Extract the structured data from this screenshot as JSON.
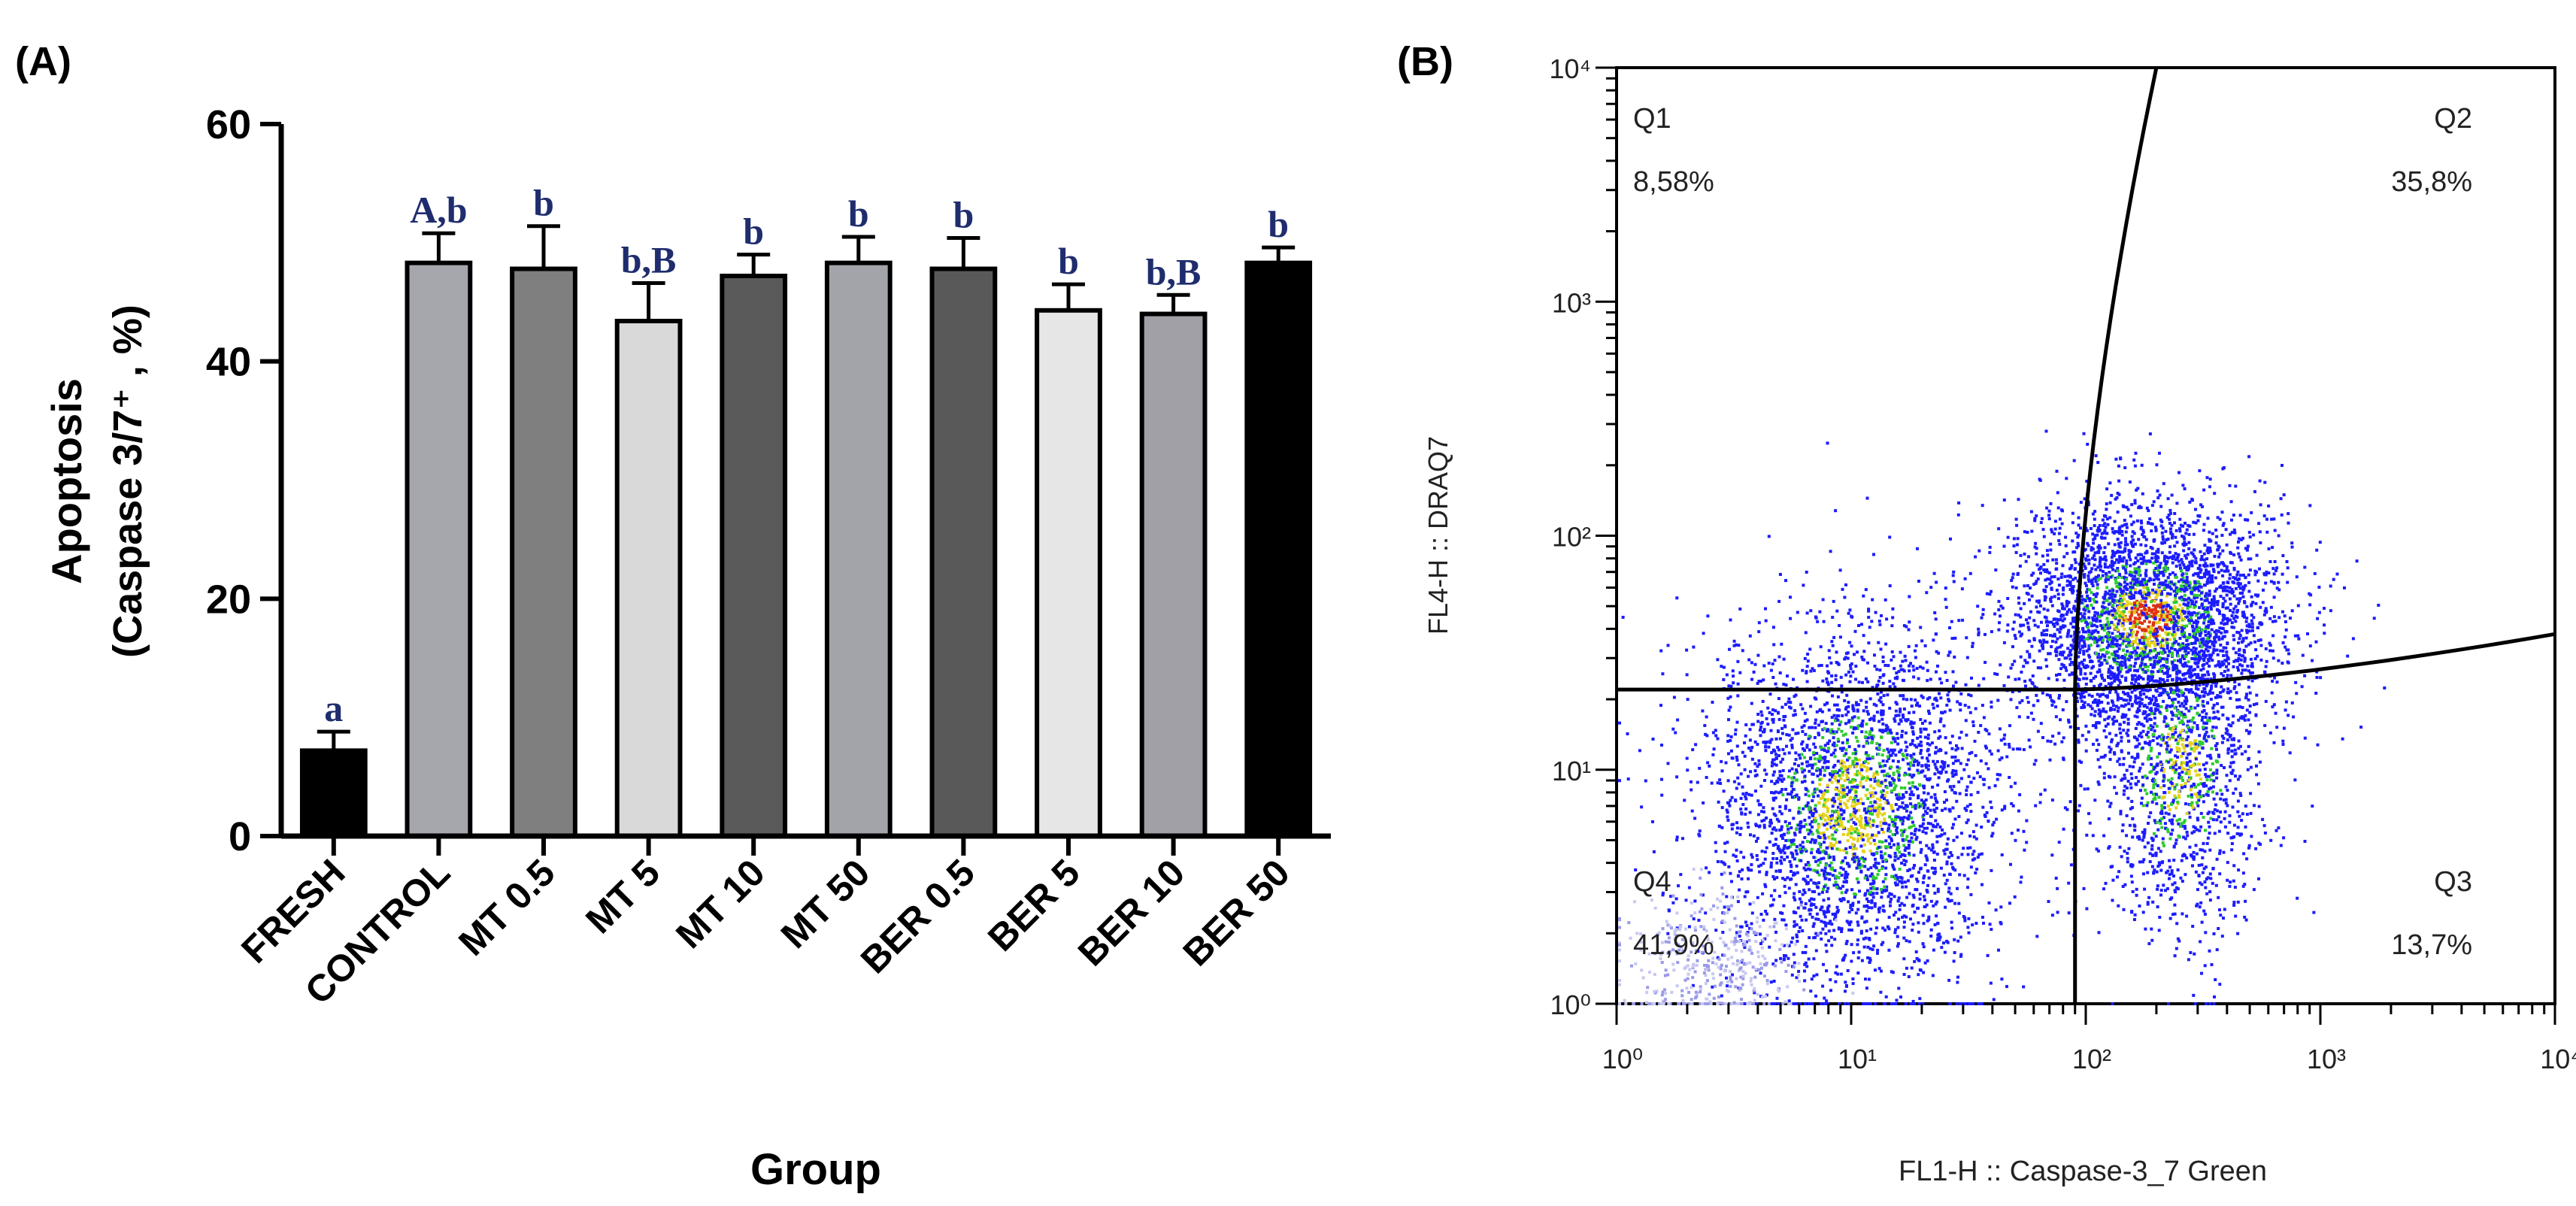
{
  "panel_a": {
    "label": "(A)",
    "chart_data": {
      "type": "bar",
      "categories": [
        "FRESH",
        "CONTROL",
        "MT 0.5",
        "MT 5",
        "MT 10",
        "MT 50",
        "BER 0.5",
        "BER 5",
        "BER 10",
        "BER 50"
      ],
      "values": [
        7.2,
        48.3,
        47.8,
        43.4,
        47.2,
        48.3,
        47.8,
        44.3,
        44.0,
        48.3
      ],
      "errors": [
        1.6,
        2.5,
        3.6,
        3.2,
        1.8,
        2.2,
        2.6,
        2.2,
        1.6,
        1.3
      ],
      "significance": [
        "a",
        "A,b",
        "b",
        "b,B",
        "b",
        "b",
        "b",
        "b",
        "b,B",
        "b"
      ],
      "bar_colors": [
        "#000000",
        "#a6a6ad",
        "#7f7f7f",
        "#d9d9d9",
        "#5a5a5a",
        "#a3a3aa",
        "#595959",
        "#e6e6e6",
        "#a0a0a6",
        "#000000"
      ],
      "ylabel_line1": "Apoptosis",
      "ylabel_line2": "(Caspase 3/7⁺ , %)",
      "xlabel": "Group",
      "ylim": [
        0,
        60
      ],
      "yticks": [
        0,
        20,
        40,
        60
      ],
      "sig_color": "#1f2d6e"
    }
  },
  "panel_b": {
    "label": "(B)",
    "chart_data": {
      "type": "scatter",
      "xlabel": "FL1-H :: Caspase-3_7 Green",
      "ylabel": "FL4-H :: DRAQ7",
      "xscale": "log",
      "yscale": "log",
      "xlim": [
        1,
        10000
      ],
      "ylim": [
        1,
        10000
      ],
      "tick_labels": [
        "10⁰",
        "10¹",
        "10²",
        "10³",
        "10⁴"
      ],
      "gate_x": 90,
      "gate_y": 22,
      "quadrants": [
        {
          "name": "Q1",
          "percent": "8,58%"
        },
        {
          "name": "Q2",
          "percent": "35,8%"
        },
        {
          "name": "Q3",
          "percent": "13,7%"
        },
        {
          "name": "Q4",
          "percent": "41,9%"
        }
      ],
      "populations": [
        {
          "center_x": 10,
          "center_y": 7,
          "count": 3200
        },
        {
          "center_x": 180,
          "center_y": 45,
          "count": 3300
        },
        {
          "center_x": 250,
          "center_y": 10,
          "count": 1300
        },
        {
          "center_x": 2.5,
          "center_y": 1.5,
          "count": 400
        }
      ],
      "density_colors": [
        "#1c1cff",
        "#2ecc2e",
        "#e6d21a",
        "#e03010"
      ]
    }
  }
}
